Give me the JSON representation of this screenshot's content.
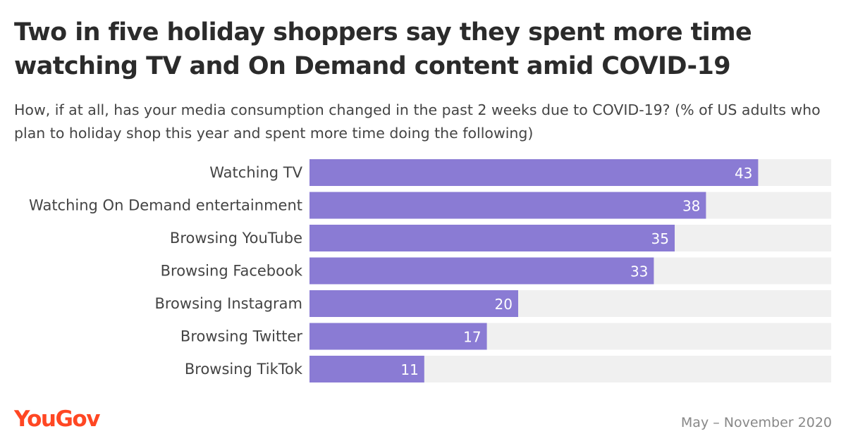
{
  "title": "Two in five holiday shoppers say they spent more time watching TV and On Demand content amid COVID-19",
  "subtitle": "How, if at all, has your media consumption changed in the past 2 weeks due to COVID-19? (% of US adults who plan to holiday shop this year and spent more time doing the following)",
  "footer": {
    "logo_text": "YouGov",
    "date_range": "May – November 2020"
  },
  "colors": {
    "bar": "#8a7bd4",
    "track": "#f0f0f0",
    "logo": "#ff4723"
  },
  "chart_data": {
    "type": "bar",
    "orientation": "horizontal",
    "categories": [
      "Watching TV",
      "Watching On Demand entertainment",
      "Browsing YouTube",
      "Browsing Facebook",
      "Browsing Instagram",
      "Browsing Twitter",
      "Browsing TikTok"
    ],
    "values": [
      43,
      38,
      35,
      33,
      20,
      17,
      11
    ],
    "xlim": [
      0,
      50
    ],
    "grid": false,
    "data_labels": true
  }
}
